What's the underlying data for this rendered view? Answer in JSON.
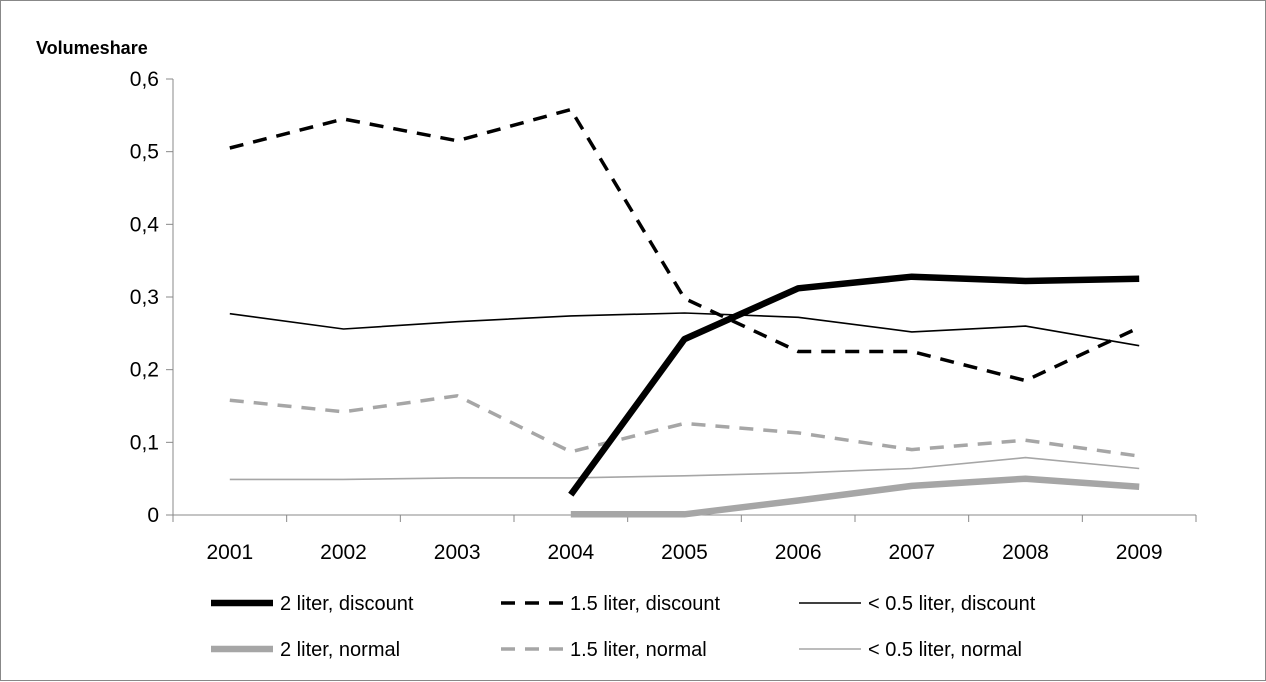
{
  "chart_data": {
    "type": "line",
    "title": "",
    "ylabel": "Volumeshare",
    "xlabel": "",
    "ylim": [
      0,
      0.6
    ],
    "yticks": [
      0,
      0.1,
      0.2,
      0.3,
      0.4,
      0.5,
      0.6
    ],
    "ytick_labels": [
      "0",
      "0,1",
      "0,2",
      "0,3",
      "0,4",
      "0,5",
      "0,6"
    ],
    "categories": [
      "2001",
      "2002",
      "2003",
      "2004",
      "2005",
      "2006",
      "2007",
      "2008",
      "2009"
    ],
    "grid": false,
    "legend_position": "bottom",
    "series": [
      {
        "name": "2 liter, discount",
        "color": "#000000",
        "style": "solid",
        "weight": "thick",
        "values": [
          null,
          null,
          null,
          0.028,
          0.242,
          0.312,
          0.328,
          0.322,
          0.325
        ]
      },
      {
        "name": "1.5 liter, discount",
        "color": "#000000",
        "style": "dashed",
        "weight": "medium",
        "values": [
          0.505,
          0.545,
          0.515,
          0.558,
          0.298,
          0.225,
          0.225,
          0.185,
          0.258
        ]
      },
      {
        "name": "< 0.5 liter, discount",
        "color": "#000000",
        "style": "solid",
        "weight": "thin",
        "values": [
          0.277,
          0.256,
          0.266,
          0.274,
          0.278,
          0.272,
          0.252,
          0.26,
          0.233
        ]
      },
      {
        "name": "2 liter, normal",
        "color": "#a6a6a6",
        "style": "solid",
        "weight": "thick",
        "values": [
          null,
          null,
          null,
          0.001,
          0.001,
          0.02,
          0.04,
          0.05,
          0.039
        ]
      },
      {
        "name": "1.5 liter, normal",
        "color": "#a6a6a6",
        "style": "dashed",
        "weight": "medium",
        "values": [
          0.158,
          0.142,
          0.164,
          0.087,
          0.126,
          0.113,
          0.09,
          0.103,
          0.081
        ]
      },
      {
        "name": "< 0.5 liter, normal",
        "color": "#a6a6a6",
        "style": "solid",
        "weight": "thin",
        "values": [
          0.049,
          0.049,
          0.051,
          0.051,
          0.054,
          0.058,
          0.064,
          0.079,
          0.064
        ]
      }
    ]
  }
}
